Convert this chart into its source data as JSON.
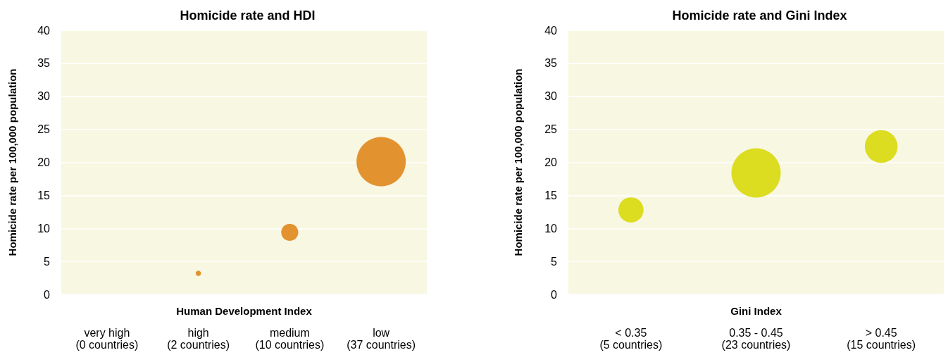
{
  "chart_data": [
    {
      "type": "bubble",
      "title": "Homicide rate and HDI",
      "xlabel": "Human Development Index",
      "ylabel": "Homicide rate per 100,000 population",
      "categories": [
        "very high\n(0 countries)",
        "high\n(2 countries)",
        "medium\n(10 countries)",
        "low\n(37 countries)"
      ],
      "values": [
        null,
        3.2,
        9.4,
        20.1
      ],
      "sizes": [
        null,
        0.012,
        0.12,
        1
      ],
      "color": "#e39230",
      "ylim": [
        0,
        40
      ],
      "yticks": [
        0,
        5,
        10,
        15,
        20,
        25,
        30,
        35,
        40
      ],
      "grid": "y"
    },
    {
      "type": "bubble",
      "title": "Homicide rate and Gini Index",
      "xlabel": "Gini Index",
      "ylabel": "Homicide rate per 100,000 population",
      "categories": [
        "< 0.35\n(5 countries)",
        "0.35 - 0.45\n(23 countries)",
        "> 0.45\n(15 countries)"
      ],
      "values": [
        12.8,
        18.4,
        22.4
      ],
      "sizes": [
        0.26,
        1,
        0.44
      ],
      "color": "#dcdc20",
      "ylim": [
        0,
        40
      ],
      "yticks": [
        0,
        5,
        10,
        15,
        20,
        25,
        30,
        35,
        40
      ],
      "grid": "y"
    }
  ]
}
